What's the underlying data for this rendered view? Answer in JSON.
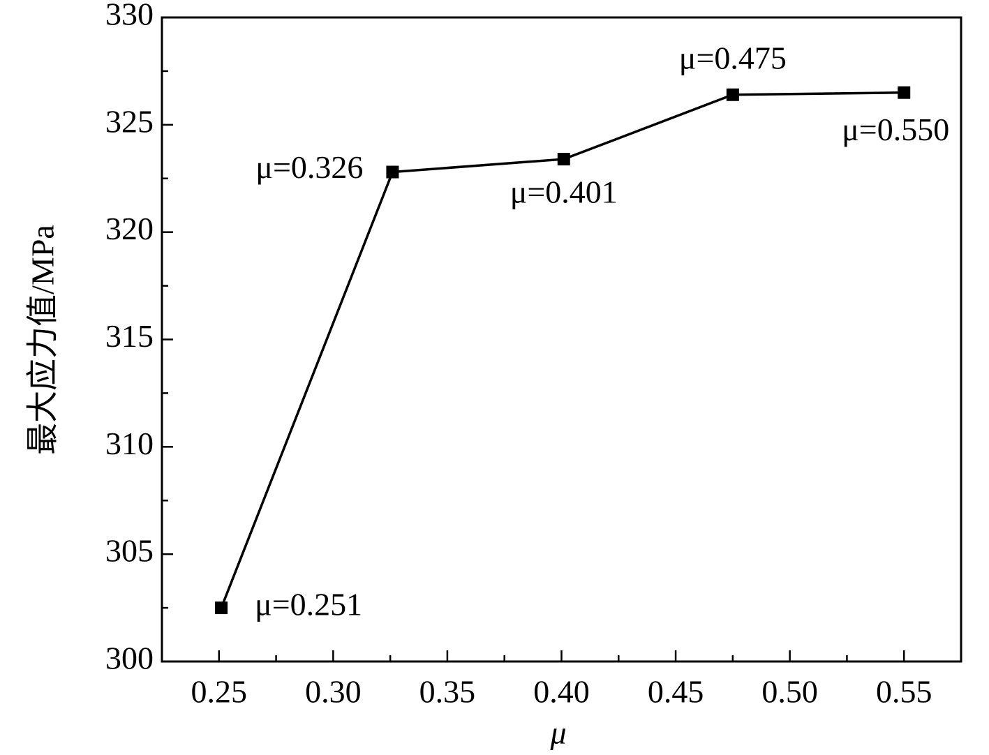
{
  "chart_data": {
    "type": "line",
    "x_label": "μ",
    "y_label": "最大应力值/MPa",
    "x": [
      0.251,
      0.326,
      0.401,
      0.475,
      0.55
    ],
    "series": [
      {
        "color": "#000000",
        "values": [
          302.5,
          322.8,
          323.4,
          326.4,
          326.5
        ],
        "value_labels": [
          "μ=0.251",
          "μ=0.326",
          "μ=0.401",
          "μ=0.475",
          "μ=0.550"
        ]
      }
    ],
    "xlim": [
      0.225,
      0.575
    ],
    "ylim": [
      300,
      330
    ],
    "xticks": [
      {
        "value": 0.25,
        "label": "0.25"
      },
      {
        "value": 0.3,
        "label": "0.30"
      },
      {
        "value": 0.35,
        "label": "0.35"
      },
      {
        "value": 0.4,
        "label": "0.40"
      },
      {
        "value": 0.45,
        "label": "0.45"
      },
      {
        "value": 0.5,
        "label": "0.50"
      },
      {
        "value": 0.55,
        "label": "0.55"
      }
    ],
    "yticks": [
      300,
      305,
      310,
      315,
      320,
      325,
      330
    ],
    "xminorticks": [
      0.275,
      0.325,
      0.375,
      0.425,
      0.475,
      0.525
    ],
    "yminorticks": [
      302.5,
      307.5,
      312.5,
      317.5,
      322.5,
      327.5
    ],
    "grid": false
  }
}
